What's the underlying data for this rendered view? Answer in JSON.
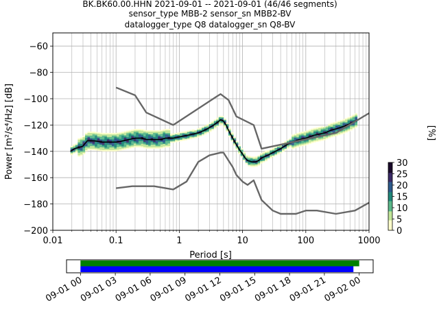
{
  "title_lines": [
    "BK.BK60.00.HHN   2021-09-01 -- 2021-09-01  (46/46 segments)",
    "sensor_type MBB-2 sensor_sn MBB2-BV",
    "datalogger_type Q8 datalogger_sn Q8-BV"
  ],
  "chart_data": [
    {
      "type": "heatmap",
      "xlabel": "Period [s]",
      "ylabel": "Power [m²/s⁴/Hz] [dB]",
      "xscale": "log",
      "xlim": [
        0.01,
        1000
      ],
      "ylim": [
        -200,
        -50
      ],
      "x_ticks": [
        0.01,
        0.1,
        1,
        10,
        100,
        1000
      ],
      "x_tick_labels": [
        "0.01",
        "0.1",
        "1",
        "10",
        "100",
        "1000"
      ],
      "y_ticks": [
        -200,
        -180,
        -160,
        -140,
        -120,
        -100,
        -80,
        -60
      ],
      "y_tick_labels": [
        "−200",
        "−180",
        "−160",
        "−140",
        "−120",
        "−100",
        "−80",
        "−60"
      ],
      "grid": true,
      "colormap": [
        "#ffffcc",
        "#c2e699",
        "#5bb88a",
        "#20887a",
        "#2c5a8c",
        "#3b2a66",
        "#1a0a2a"
      ],
      "colorbar": {
        "label": "[%]",
        "range": [
          0,
          30
        ],
        "ticks": [
          0,
          5,
          10,
          15,
          20,
          25,
          30
        ],
        "tick_labels": [
          "0",
          "5",
          "10",
          "15",
          "20",
          "25",
          "30"
        ]
      },
      "series": [
        {
          "name": "",
          "role": "mean",
          "color": "#000000",
          "x": [
            0.019,
            0.022,
            0.026,
            0.03,
            0.035,
            0.045,
            0.06,
            0.08,
            0.1,
            0.13,
            0.16,
            0.2,
            0.25,
            0.3,
            0.4,
            0.5,
            0.6,
            0.8,
            1.0,
            1.3,
            1.6,
            2.0,
            2.5,
            3.0,
            3.5,
            4.0,
            4.5,
            5.0,
            5.5,
            6.0,
            7.0,
            8.0,
            9.0,
            10.0,
            11.0,
            12.0,
            14.0,
            16.0,
            18.0,
            20.0,
            25.0,
            30.0,
            40.0,
            50.0,
            60.0,
            80.0,
            100.0,
            130.0,
            160.0,
            200.0,
            250.0,
            300.0,
            400.0,
            500.0,
            600.0,
            650.0
          ],
          "y": [
            -140,
            -138,
            -137,
            -136,
            -132,
            -132,
            -133,
            -133,
            -133,
            -132,
            -131,
            -130,
            -130,
            -131,
            -131,
            -131,
            -130,
            -130,
            -129,
            -128,
            -127,
            -126,
            -124,
            -122,
            -120,
            -118,
            -116,
            -117,
            -120,
            -124,
            -130,
            -135,
            -139,
            -142,
            -145,
            -147,
            -148,
            -148,
            -147,
            -145,
            -143,
            -141,
            -138,
            -135,
            -133,
            -131,
            -130,
            -128,
            -127,
            -126,
            -124,
            -123,
            -121,
            -119,
            -117,
            -116
          ]
        },
        {
          "name": "",
          "role": "reference-high",
          "color": "#666666",
          "x": [
            0.1,
            0.2,
            0.3,
            0.8,
            4.0,
            4.5,
            6.0,
            8.0,
            15.0,
            20.0,
            300.0,
            1000.0
          ],
          "y": [
            -91.5,
            -97.4,
            -110.5,
            -120.0,
            -98.0,
            -96.5,
            -101.0,
            -113.5,
            -120.0,
            -138.0,
            -126.0,
            -111.0
          ]
        },
        {
          "name": "",
          "role": "reference-low",
          "color": "#666666",
          "x": [
            0.1,
            0.18,
            0.4,
            0.8,
            1.3,
            2.0,
            3.0,
            4.5,
            5.0,
            7.0,
            8.0,
            10.0,
            12.0,
            15.0,
            20.0,
            30.0,
            40.0,
            70.0,
            100.0,
            150.0,
            300.0,
            600.0,
            1000.0
          ],
          "y": [
            -168.0,
            -166.5,
            -166.5,
            -169.0,
            -163.0,
            -148.0,
            -143.0,
            -141.0,
            -141.0,
            -152.0,
            -158.0,
            -163.0,
            -165.5,
            -162.0,
            -177.0,
            -185.0,
            -187.5,
            -187.5,
            -185.0,
            -185.0,
            -187.5,
            -185.0,
            -179.0
          ]
        }
      ]
    },
    {
      "type": "timeline",
      "x_tick_labels": [
        "09-01 00",
        "09-01 03",
        "09-01 06",
        "09-01 09",
        "09-01 12",
        "09-01 15",
        "09-01 18",
        "09-01 21",
        "09-02 00"
      ],
      "x_ticks_hours": [
        0,
        3,
        6,
        9,
        12,
        15,
        18,
        21,
        24
      ],
      "xlim_hours": [
        -1.2,
        25.2
      ],
      "bars": [
        {
          "color": "#008000",
          "start_hour": 0,
          "end_hour": 24.0
        },
        {
          "color": "#0000ff",
          "start_hour": 0,
          "end_hour": 23.5
        }
      ]
    }
  ]
}
